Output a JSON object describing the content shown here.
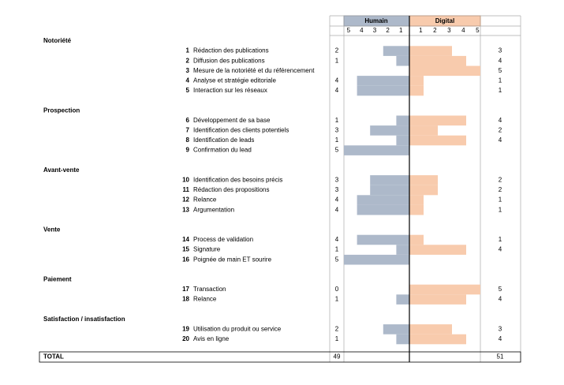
{
  "chart_data": {
    "type": "butterfly",
    "series": [
      {
        "name": "Humain",
        "color": "#adb9ca"
      },
      {
        "name": "Digital",
        "color": "#f8cbad"
      }
    ],
    "xlim": [
      0,
      5
    ],
    "xticks": [
      1,
      2,
      3,
      4,
      5
    ],
    "groups": [
      {
        "title": "Notoriété",
        "rows": [
          {
            "number": 1,
            "label": "Rédaction des publications",
            "humain": 2,
            "digital": 3
          },
          {
            "number": 2,
            "label": "Diffusion des publications",
            "humain": 1,
            "digital": 4
          },
          {
            "number": 3,
            "label": "Mesure de la notoriété et du référencement",
            "humain": null,
            "digital": 5
          },
          {
            "number": 4,
            "label": "Analyse et stratégie editoriale",
            "humain": 4,
            "digital": 1
          },
          {
            "number": 5,
            "label": "Interaction sur les réseaux",
            "humain": 4,
            "digital": 1
          }
        ]
      },
      {
        "title": "Prospection",
        "rows": [
          {
            "number": 6,
            "label": "Développement de sa base",
            "humain": 1,
            "digital": 4
          },
          {
            "number": 7,
            "label": "Identification des clients potentiels",
            "humain": 3,
            "digital": 2
          },
          {
            "number": 8,
            "label": "Identification de leads",
            "humain": 1,
            "digital": 4
          },
          {
            "number": 9,
            "label": "Confirmation du lead",
            "humain": 5,
            "digital": null
          }
        ]
      },
      {
        "title": "Avant-vente",
        "rows": [
          {
            "number": 10,
            "label": "Identification des besoins précis",
            "humain": 3,
            "digital": 2
          },
          {
            "number": 11,
            "label": "Rédaction des propositions",
            "humain": 3,
            "digital": 2
          },
          {
            "number": 12,
            "label": "Relance",
            "humain": 4,
            "digital": 1
          },
          {
            "number": 13,
            "label": "Argumentation",
            "humain": 4,
            "digital": 1
          }
        ]
      },
      {
        "title": "Vente",
        "rows": [
          {
            "number": 14,
            "label": "Process de validation",
            "humain": 4,
            "digital": 1
          },
          {
            "number": 15,
            "label": "Signature",
            "humain": 1,
            "digital": 4
          },
          {
            "number": 16,
            "label": "Poignée de main ET sourire",
            "humain": 5,
            "digital": null
          }
        ]
      },
      {
        "title": "Paiement",
        "rows": [
          {
            "number": 17,
            "label": "Transaction",
            "humain": 0,
            "digital": 5
          },
          {
            "number": 18,
            "label": "Relance",
            "humain": 1,
            "digital": 4
          }
        ]
      },
      {
        "title": "Satisfaction / insatisfaction",
        "rows": [
          {
            "number": 19,
            "label": "Utilisation du produit ou service",
            "humain": 2,
            "digital": 3
          },
          {
            "number": 20,
            "label": "Avis en ligne",
            "humain": 1,
            "digital": 4
          }
        ]
      }
    ],
    "total": {
      "label": "TOTAL",
      "humain": 49,
      "digital": 51
    }
  }
}
